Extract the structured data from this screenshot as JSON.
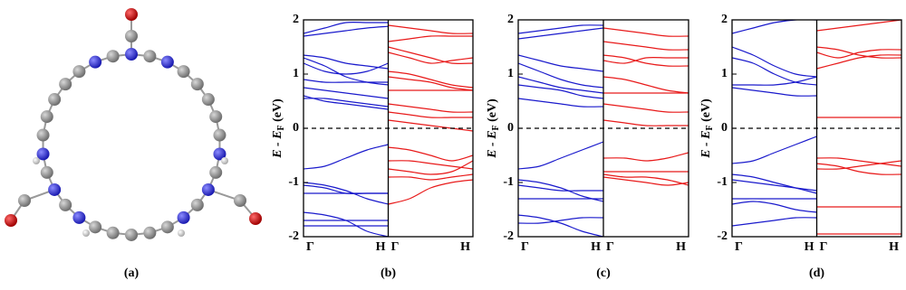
{
  "figure_a": {
    "label": "(a)"
  },
  "chart_data": [
    {
      "type": "band",
      "label": "(b)",
      "ylabel_main": "E - E",
      "ylabel_sub": "F",
      "ylabel_unit": " (eV)",
      "ylim": [
        -2,
        2
      ],
      "yticks": [
        -2,
        -1,
        0,
        1,
        2
      ],
      "fermi_level": 0,
      "spins": [
        {
          "color": "#1a1acc",
          "categories": [
            "Γ",
            null,
            null,
            null,
            "H"
          ],
          "series": [
            {
              "values": [
                1.7,
                1.75,
                1.8,
                1.85,
                1.88
              ]
            },
            {
              "values": [
                1.75,
                1.85,
                1.95,
                1.95,
                1.95
              ]
            },
            {
              "values": [
                1.35,
                1.3,
                1.2,
                1.15,
                1.1
              ]
            },
            {
              "values": [
                1.3,
                1.15,
                0.95,
                0.85,
                0.8
              ]
            },
            {
              "values": [
                1.2,
                1.05,
                1.0,
                1.05,
                1.2
              ]
            },
            {
              "values": [
                0.9,
                0.85,
                0.85,
                0.85,
                0.85
              ]
            },
            {
              "values": [
                0.75,
                0.7,
                0.65,
                0.6,
                0.55
              ]
            },
            {
              "values": [
                0.55,
                0.55,
                0.5,
                0.45,
                0.4
              ]
            },
            {
              "values": [
                0.6,
                0.5,
                0.45,
                0.4,
                0.35
              ]
            },
            {
              "values": [
                -0.75,
                -0.7,
                -0.55,
                -0.4,
                -0.3
              ]
            },
            {
              "values": [
                -1.0,
                -1.05,
                -1.15,
                -1.3,
                -1.4
              ]
            },
            {
              "values": [
                -1.05,
                -1.1,
                -1.2,
                -1.2,
                -1.2
              ]
            },
            {
              "values": [
                -1.2,
                -1.2,
                -1.2,
                -1.2,
                -1.2
              ]
            },
            {
              "values": [
                -1.55,
                -1.6,
                -1.7,
                -1.9,
                -2.0
              ]
            },
            {
              "values": [
                -1.7,
                -1.7,
                -1.7,
                -1.7,
                -1.7
              ]
            },
            {
              "values": [
                -1.8,
                -1.8,
                -1.8,
                -1.8,
                -1.8
              ]
            }
          ]
        },
        {
          "color": "#e81a1a",
          "categories": [
            "Γ",
            null,
            null,
            null,
            "H"
          ],
          "series": [
            {
              "values": [
                1.9,
                1.85,
                1.8,
                1.75,
                1.75
              ]
            },
            {
              "values": [
                1.6,
                1.65,
                1.7,
                1.7,
                1.7
              ]
            },
            {
              "values": [
                1.5,
                1.4,
                1.3,
                1.2,
                1.2
              ]
            },
            {
              "values": [
                1.4,
                1.3,
                1.2,
                1.25,
                1.3
              ]
            },
            {
              "values": [
                1.05,
                1.0,
                0.9,
                0.8,
                0.75
              ]
            },
            {
              "values": [
                0.95,
                0.9,
                0.85,
                0.75,
                0.7
              ]
            },
            {
              "values": [
                0.7,
                0.7,
                0.7,
                0.7,
                0.7
              ]
            },
            {
              "values": [
                0.45,
                0.4,
                0.35,
                0.3,
                0.3
              ]
            },
            {
              "values": [
                0.3,
                0.25,
                0.2,
                0.2,
                0.2
              ]
            },
            {
              "values": [
                0.15,
                0.1,
                0.05,
                0.0,
                -0.05
              ]
            },
            {
              "values": [
                -0.35,
                -0.4,
                -0.5,
                -0.6,
                -0.5
              ]
            },
            {
              "values": [
                -0.6,
                -0.6,
                -0.65,
                -0.7,
                -0.75
              ]
            },
            {
              "values": [
                -0.75,
                -0.8,
                -0.85,
                -0.8,
                -0.6
              ]
            },
            {
              "values": [
                -0.9,
                -0.9,
                -0.95,
                -0.9,
                -0.85
              ]
            },
            {
              "values": [
                -1.4,
                -1.3,
                -1.1,
                -1.0,
                -0.95
              ]
            }
          ]
        }
      ]
    },
    {
      "type": "band",
      "label": "(c)",
      "ylabel_main": "E - E",
      "ylabel_sub": "F",
      "ylabel_unit": " (eV)",
      "ylim": [
        -2,
        2
      ],
      "yticks": [
        -2,
        -1,
        0,
        1,
        2
      ],
      "fermi_level": 0,
      "spins": [
        {
          "color": "#1a1acc",
          "categories": [
            "Γ",
            null,
            null,
            null,
            "H"
          ],
          "series": [
            {
              "values": [
                1.75,
                1.8,
                1.85,
                1.9,
                1.9
              ]
            },
            {
              "values": [
                1.65,
                1.7,
                1.75,
                1.8,
                1.85
              ]
            },
            {
              "values": [
                1.35,
                1.25,
                1.15,
                1.1,
                1.05
              ]
            },
            {
              "values": [
                1.2,
                1.05,
                0.9,
                0.8,
                0.75
              ]
            },
            {
              "values": [
                0.95,
                0.85,
                0.75,
                0.7,
                0.65
              ]
            },
            {
              "values": [
                0.8,
                0.75,
                0.7,
                0.6,
                0.55
              ]
            },
            {
              "values": [
                0.55,
                0.5,
                0.45,
                0.4,
                0.4
              ]
            },
            {
              "values": [
                -0.75,
                -0.7,
                -0.55,
                -0.4,
                -0.25
              ]
            },
            {
              "values": [
                -0.95,
                -1.0,
                -1.1,
                -1.25,
                -1.35
              ]
            },
            {
              "values": [
                -1.05,
                -1.1,
                -1.15,
                -1.15,
                -1.15
              ]
            },
            {
              "values": [
                -1.3,
                -1.3,
                -1.3,
                -1.3,
                -1.3
              ]
            },
            {
              "values": [
                -1.6,
                -1.65,
                -1.75,
                -1.9,
                -2.0
              ]
            },
            {
              "values": [
                -1.75,
                -1.75,
                -1.7,
                -1.65,
                -1.65
              ]
            }
          ]
        },
        {
          "color": "#e81a1a",
          "categories": [
            "Γ",
            null,
            null,
            null,
            "H"
          ],
          "series": [
            {
              "values": [
                1.85,
                1.8,
                1.75,
                1.7,
                1.7
              ]
            },
            {
              "values": [
                1.6,
                1.55,
                1.5,
                1.45,
                1.45
              ]
            },
            {
              "values": [
                1.35,
                1.3,
                1.2,
                1.15,
                1.15
              ]
            },
            {
              "values": [
                1.25,
                1.2,
                1.3,
                1.3,
                1.3
              ]
            },
            {
              "values": [
                0.95,
                0.9,
                0.8,
                0.7,
                0.65
              ]
            },
            {
              "values": [
                0.65,
                0.65,
                0.65,
                0.65,
                0.65
              ]
            },
            {
              "values": [
                0.45,
                0.4,
                0.35,
                0.3,
                0.3
              ]
            },
            {
              "values": [
                0.15,
                0.1,
                0.05,
                0.05,
                0.05
              ]
            },
            {
              "values": [
                -0.55,
                -0.55,
                -0.6,
                -0.55,
                -0.45
              ]
            },
            {
              "values": [
                -0.8,
                -0.8,
                -0.8,
                -0.8,
                -0.8
              ]
            },
            {
              "values": [
                -0.9,
                -0.95,
                -1.0,
                -1.05,
                -1.0
              ]
            },
            {
              "values": [
                -0.85,
                -0.9,
                -0.9,
                -0.95,
                -1.05
              ]
            }
          ]
        }
      ]
    },
    {
      "type": "band",
      "label": "(d)",
      "ylabel_main": "E - E",
      "ylabel_sub": "F",
      "ylabel_unit": " (eV)",
      "ylim": [
        -2,
        2
      ],
      "yticks": [
        -2,
        -1,
        0,
        1,
        2
      ],
      "fermi_level": 0,
      "spins": [
        {
          "color": "#1a1acc",
          "categories": [
            "Γ",
            null,
            null,
            null,
            "H"
          ],
          "series": [
            {
              "values": [
                1.75,
                1.85,
                1.95,
                2.0,
                2.0
              ]
            },
            {
              "values": [
                1.5,
                1.35,
                1.15,
                1.0,
                0.95
              ]
            },
            {
              "values": [
                1.3,
                1.2,
                1.0,
                0.85,
                0.8
              ]
            },
            {
              "values": [
                0.8,
                0.8,
                0.8,
                0.85,
                0.95
              ]
            },
            {
              "values": [
                0.75,
                0.7,
                0.65,
                0.6,
                0.6
              ]
            },
            {
              "values": [
                -0.65,
                -0.6,
                -0.45,
                -0.3,
                -0.15
              ]
            },
            {
              "values": [
                -0.85,
                -0.9,
                -1.0,
                -1.1,
                -1.2
              ]
            },
            {
              "values": [
                -0.95,
                -1.0,
                -1.05,
                -1.1,
                -1.15
              ]
            },
            {
              "values": [
                -1.3,
                -1.3,
                -1.3,
                -1.3,
                -1.3
              ]
            },
            {
              "values": [
                -1.4,
                -1.35,
                -1.4,
                -1.5,
                -1.55
              ]
            },
            {
              "values": [
                -1.8,
                -1.75,
                -1.7,
                -1.65,
                -1.65
              ]
            }
          ]
        },
        {
          "color": "#e81a1a",
          "categories": [
            "Γ",
            null,
            null,
            null,
            "H"
          ],
          "series": [
            {
              "values": [
                1.8,
                1.85,
                1.9,
                1.95,
                2.0
              ]
            },
            {
              "values": [
                1.5,
                1.45,
                1.35,
                1.3,
                1.3
              ]
            },
            {
              "values": [
                1.4,
                1.3,
                1.4,
                1.45,
                1.45
              ]
            },
            {
              "values": [
                1.1,
                1.2,
                1.3,
                1.35,
                1.35
              ]
            },
            {
              "values": [
                0.2,
                0.2,
                0.2,
                0.2,
                0.2
              ]
            },
            {
              "values": [
                -0.55,
                -0.55,
                -0.6,
                -0.65,
                -0.7
              ]
            },
            {
              "values": [
                -0.65,
                -0.7,
                -0.8,
                -0.85,
                -0.85
              ]
            },
            {
              "values": [
                -0.75,
                -0.75,
                -0.7,
                -0.65,
                -0.6
              ]
            },
            {
              "values": [
                -1.45,
                -1.45,
                -1.45,
                -1.45,
                -1.45
              ]
            },
            {
              "values": [
                -1.95,
                -1.95,
                -1.95,
                -1.95,
                -1.95
              ]
            }
          ]
        }
      ]
    }
  ]
}
